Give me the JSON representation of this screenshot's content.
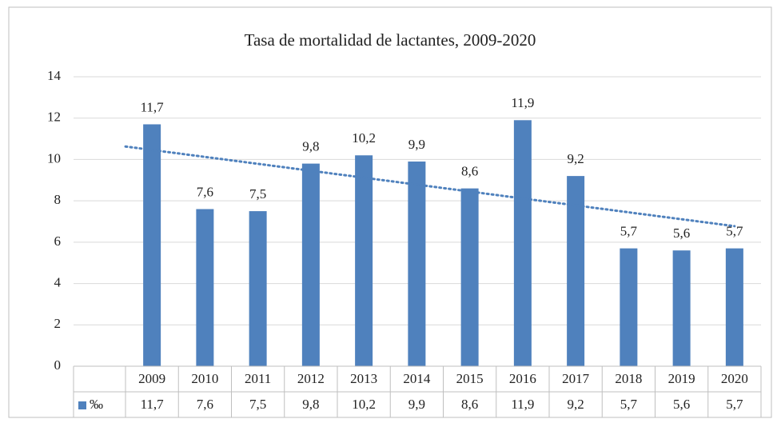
{
  "chart_data": {
    "type": "bar",
    "title": "Tasa de mortalidad de lactantes, 2009-2020",
    "categories": [
      "2009",
      "2010",
      "2011",
      "2012",
      "2013",
      "2014",
      "2015",
      "2016",
      "2017",
      "2018",
      "2019",
      "2020"
    ],
    "series": [
      {
        "name": "‰",
        "color": "#4f81bd",
        "values": [
          11.7,
          7.6,
          7.5,
          9.8,
          10.2,
          9.9,
          8.6,
          11.9,
          9.2,
          5.7,
          5.6,
          5.7
        ],
        "value_labels": [
          "11,7",
          "7,6",
          "7,5",
          "9,8",
          "10,2",
          "9,9",
          "8,6",
          "11,9",
          "9,2",
          "5,7",
          "5,6",
          "5,7"
        ]
      }
    ],
    "ylim": [
      0,
      14
    ],
    "yticks": [
      0,
      2,
      4,
      6,
      8,
      10,
      12,
      14
    ],
    "grid": true,
    "trendline": true,
    "data_table": true
  }
}
